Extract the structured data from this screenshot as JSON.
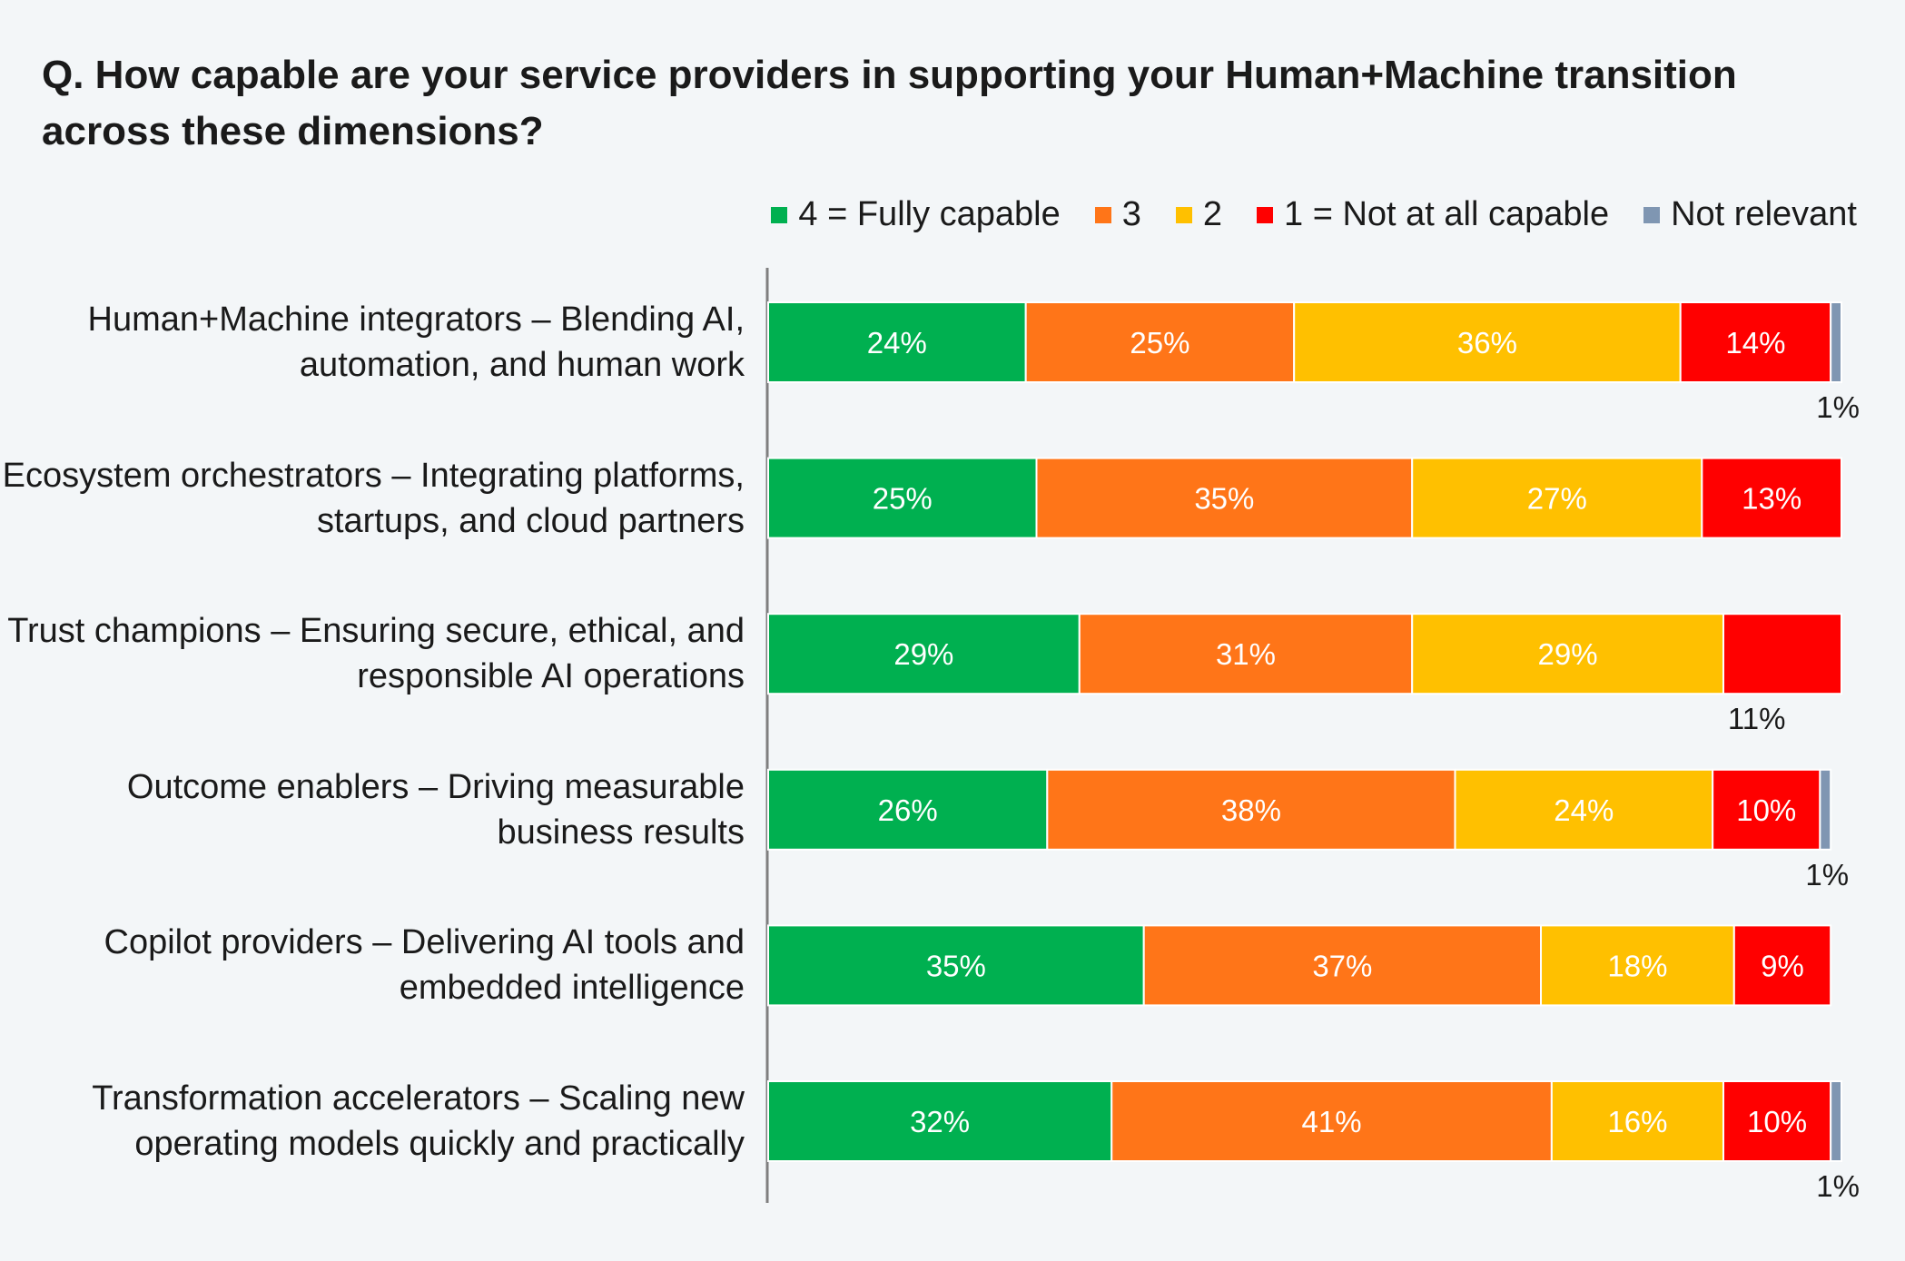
{
  "title": "Q. How capable are your service providers in supporting your Human+Machine transition across these dimensions?",
  "legend": [
    {
      "name": "4 = Fully capable",
      "color": "#00b050"
    },
    {
      "name": "3",
      "color": "#ff7518"
    },
    {
      "name": "2",
      "color": "#ffc000"
    },
    {
      "name": "1 = Not at all capable",
      "color": "#ff0000"
    },
    {
      "name": "Not relevant",
      "color": "#7f96b2"
    }
  ],
  "chart_data": {
    "type": "bar",
    "orientation": "horizontal",
    "stacked": true,
    "title": "Q. How capable are your service providers in supporting your Human+Machine transition across these dimensions?",
    "legend_position": "top-right",
    "xlim": [
      0,
      100
    ],
    "categories": [
      "Human+Machine integrators – Blending AI, automation, and human work",
      "Ecosystem orchestrators – Integrating platforms, startups, and cloud partners",
      "Trust champions – Ensuring secure, ethical, and responsible AI operations",
      "Outcome enablers – Driving measurable business results",
      "Copilot providers – Delivering AI tools and embedded intelligence",
      "Transformation accelerators – Scaling new operating models quickly and practically"
    ],
    "series": [
      {
        "name": "4 = Fully capable",
        "color": "#00b050",
        "values": [
          24,
          25,
          29,
          26,
          35,
          32
        ]
      },
      {
        "name": "3",
        "color": "#ff7518",
        "values": [
          25,
          35,
          31,
          38,
          37,
          41
        ]
      },
      {
        "name": "2",
        "color": "#ffc000",
        "values": [
          36,
          27,
          29,
          24,
          18,
          16
        ]
      },
      {
        "name": "1 = Not at all capable",
        "color": "#ff0000",
        "values": [
          14,
          13,
          11,
          10,
          9,
          10
        ]
      },
      {
        "name": "Not relevant",
        "color": "#7f96b2",
        "values": [
          1,
          0,
          0,
          1,
          0,
          1
        ]
      }
    ]
  }
}
